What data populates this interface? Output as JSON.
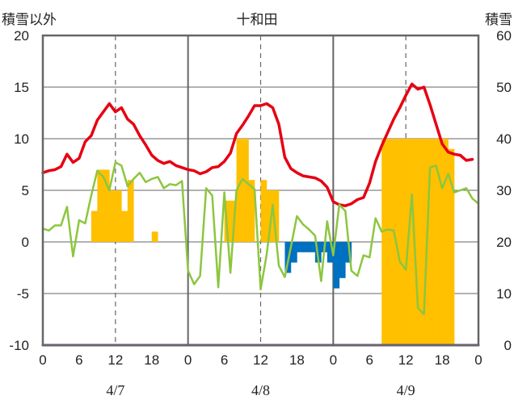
{
  "chart_data": {
    "type": "bar",
    "title": "十和田",
    "ylabel_left": "積雪以外",
    "ylabel_right": "積雪",
    "ylim_left": [
      -10,
      20
    ],
    "yticks_left": [
      20,
      15,
      10,
      5,
      0,
      -5,
      -10
    ],
    "ylim_right": [
      0,
      60
    ],
    "yticks_right": [
      60,
      50,
      40,
      30,
      20,
      10,
      0
    ],
    "x_range_hours": [
      0,
      72
    ],
    "x_tick_labels": [
      "0",
      "6",
      "12",
      "18",
      "0",
      "6",
      "12",
      "18",
      "0",
      "6",
      "12",
      "18",
      "0"
    ],
    "x_tick_hours": [
      0,
      6,
      12,
      18,
      24,
      30,
      36,
      42,
      48,
      54,
      60,
      66,
      72
    ],
    "date_labels": [
      {
        "label": "4/7",
        "hour": 12
      },
      {
        "label": "4/8",
        "hour": 36
      },
      {
        "label": "4/9",
        "hour": 60
      }
    ],
    "colors": {
      "temperature": "#e60012",
      "wind": "#8cc63f",
      "precipitation": "#ffc000",
      "negative_bar": "#0070c0",
      "snow_depth": "#7030a0",
      "grid": "#666666"
    },
    "series": [
      {
        "type": "bar",
        "color": "#ffc000",
        "x": [
          8,
          9,
          10,
          11,
          12,
          13,
          14,
          18,
          30,
          31,
          32,
          33,
          34,
          36,
          37,
          38
        ],
        "values": [
          3,
          7,
          7,
          5,
          5,
          3,
          6,
          1,
          4,
          4,
          10,
          10,
          6,
          6,
          5,
          5
        ]
      },
      {
        "type": "bar",
        "color": "#0070c0",
        "x": [
          40,
          41,
          42,
          43,
          44,
          45,
          46,
          47,
          48,
          49,
          50
        ],
        "values": [
          -3,
          -2,
          -1,
          -1,
          -1,
          -2,
          -1,
          -2,
          -4.5,
          -3.5,
          -2
        ]
      },
      {
        "type": "bar",
        "color": "#ffc000",
        "axis": "right",
        "x": [
          56,
          57,
          58,
          59,
          60,
          61,
          62,
          63,
          64,
          65,
          66,
          67
        ],
        "values": [
          40,
          40,
          40,
          40,
          40,
          40,
          40,
          40,
          40,
          40,
          40,
          38
        ]
      },
      {
        "type": "line",
        "color": "#e60012",
        "x": [
          0,
          1,
          2,
          3,
          4,
          5,
          6,
          7,
          8,
          9,
          10,
          11,
          12,
          13,
          14,
          15,
          16,
          17,
          18,
          19,
          20,
          21,
          22,
          23,
          24,
          25,
          26,
          27,
          28,
          29,
          30,
          31,
          32,
          33,
          34,
          35,
          36,
          37,
          38,
          39,
          40,
          41,
          42,
          43,
          44,
          45,
          46,
          47,
          48,
          49,
          50,
          51,
          52,
          53,
          54,
          55,
          56,
          57,
          58,
          59,
          60,
          61,
          62,
          63,
          64,
          65,
          66,
          67,
          68,
          69,
          70,
          71
        ],
        "values": [
          6.7,
          6.9,
          7.0,
          7.3,
          8.5,
          7.7,
          8.1,
          9.7,
          10.3,
          11.8,
          12.6,
          13.4,
          12.6,
          13.0,
          11.9,
          11.4,
          10.3,
          9.4,
          8.4,
          7.9,
          7.6,
          7.8,
          7.4,
          7.2,
          7.0,
          6.9,
          6.6,
          6.8,
          7.2,
          7.3,
          7.8,
          8.6,
          10.5,
          11.3,
          12.2,
          13.2,
          13.2,
          13.4,
          13.0,
          11.4,
          8.2,
          7.1,
          6.7,
          6.4,
          6.3,
          6.2,
          5.9,
          5.3,
          3.9,
          3.6,
          3.5,
          3.7,
          4.1,
          4.3,
          5.7,
          7.8,
          9.3,
          10.6,
          11.9,
          13.0,
          14.2,
          15.3,
          14.8,
          15.0,
          13.3,
          11.4,
          9.5,
          8.7,
          8.5,
          8.4,
          7.9,
          8.0
        ]
      },
      {
        "type": "line",
        "color": "#8cc63f",
        "x": [
          0,
          1,
          2,
          3,
          4,
          5,
          6,
          7,
          8,
          9,
          10,
          11,
          12,
          13,
          14,
          15,
          16,
          17,
          18,
          19,
          20,
          21,
          22,
          23,
          24,
          25,
          26,
          27,
          28,
          29,
          30,
          31,
          32,
          33,
          34,
          35,
          36,
          37,
          38,
          39,
          40,
          41,
          42,
          43,
          44,
          45,
          46,
          47,
          48,
          49,
          50,
          51,
          52,
          53,
          54,
          55,
          56,
          57,
          58,
          59,
          60,
          61,
          62,
          63,
          64,
          65,
          66,
          67,
          68,
          69,
          70,
          71,
          72
        ],
        "values": [
          1.3,
          1.1,
          1.6,
          1.6,
          3.4,
          -1.4,
          2.1,
          1.8,
          4.5,
          6.9,
          6.3,
          5.0,
          7.7,
          7.4,
          5.4,
          6.1,
          6.7,
          5.8,
          6.1,
          6.3,
          5.2,
          5.6,
          5.5,
          5.9,
          -2.8,
          -4.1,
          -3.3,
          5.2,
          4.5,
          -4.4,
          4.8,
          -3.0,
          5.0,
          6.1,
          5.6,
          5.1,
          -4.6,
          -1.2,
          3.6,
          -2.3,
          -3.4,
          -0.5,
          2.5,
          1.7,
          1.2,
          0.6,
          -3.8,
          2.0,
          -1.3,
          3.6,
          3.0,
          -2.8,
          -3.3,
          -1.3,
          -1.5,
          2.3,
          1.0,
          1.2,
          1.1,
          -1.9,
          -2.7,
          4.6,
          -6.4,
          -7.0,
          7.2,
          7.4,
          5.2,
          6.6,
          4.8,
          5.0,
          5.2,
          4.2,
          3.7
        ]
      },
      {
        "type": "line",
        "color": "#7030a0",
        "axis": "right",
        "x": [
          0,
          72
        ],
        "values": [
          0,
          0
        ]
      }
    ]
  }
}
